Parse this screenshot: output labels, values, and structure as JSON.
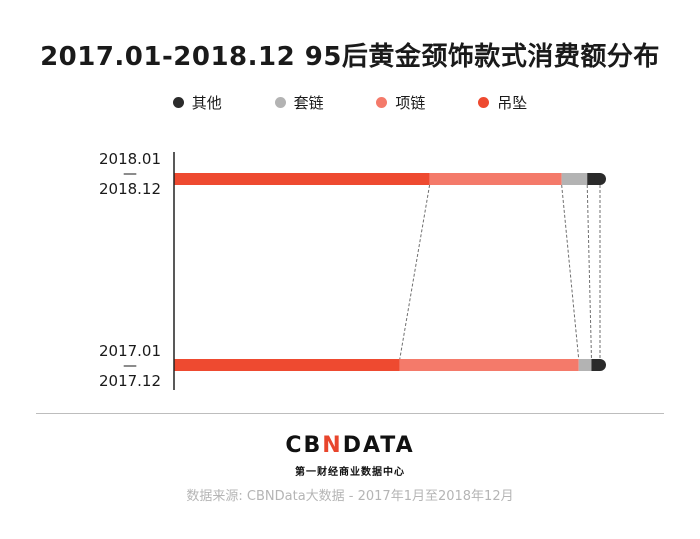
{
  "chart_data": {
    "type": "bar",
    "title": "2017.01-2018.12 95后黄金颈饰款式消费额分布",
    "legend": [
      {
        "name": "其他",
        "color": "#2b2b2b"
      },
      {
        "name": "套链",
        "color": "#b3b3b3"
      },
      {
        "name": "项链",
        "color": "#f47a6a"
      },
      {
        "name": "吊坠",
        "color": "#ee4a30"
      }
    ],
    "legend_position": "top",
    "stacked_percent": true,
    "categories": [
      {
        "top": "2018.01",
        "dash": "—",
        "bottom": "2018.12"
      },
      {
        "top": "2017.01",
        "dash": "—",
        "bottom": "2017.12"
      }
    ],
    "series": [
      {
        "name": "吊坠",
        "color": "#ee4a30",
        "values": [
          60,
          53
        ]
      },
      {
        "name": "项链",
        "color": "#f47a6a",
        "values": [
          31,
          42
        ]
      },
      {
        "name": "套链",
        "color": "#b3b3b3",
        "values": [
          6,
          3
        ]
      },
      {
        "name": "其他",
        "color": "#2b2b2b",
        "values": [
          3,
          2
        ]
      }
    ],
    "xlim": [
      0,
      100
    ],
    "grid": false,
    "connector_lines": true
  },
  "brand": {
    "logo_left": "CB",
    "logo_n": "N",
    "logo_right": "DATA",
    "tagline": "第一财经商业数据中心"
  },
  "source": "数据来源: CBNData大数据 - 2017年1月至2018年12月"
}
